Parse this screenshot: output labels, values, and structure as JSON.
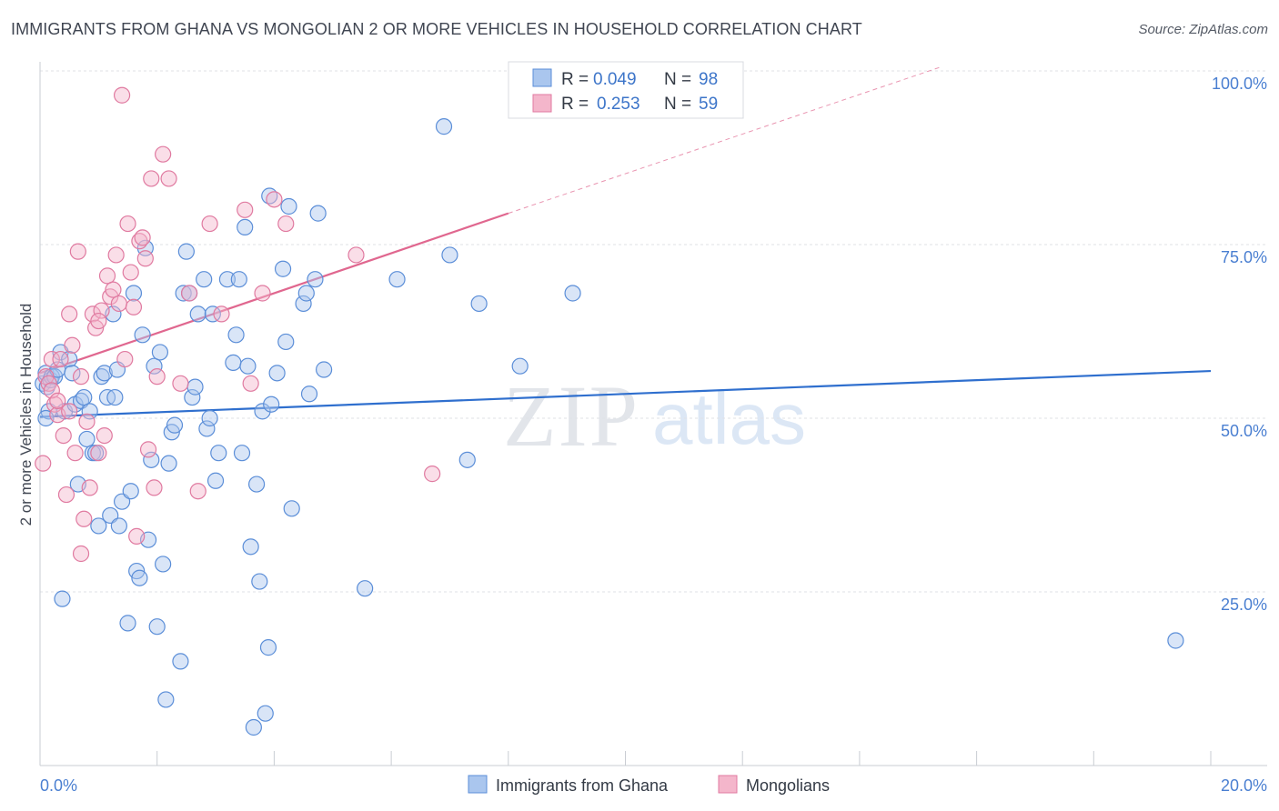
{
  "title": "IMMIGRANTS FROM GHANA VS MONGOLIAN 2 OR MORE VEHICLES IN HOUSEHOLD CORRELATION CHART",
  "source": "Source: ZipAtlas.com",
  "watermark": {
    "zip": "ZIP",
    "atlas": "atlas"
  },
  "legend": {
    "series1": {
      "r_label": "R =",
      "r_value": "0.049",
      "n_label": "N =",
      "n_value": "98"
    },
    "series2": {
      "r_label": "R =",
      "r_value": "0.253",
      "n_label": "N =",
      "n_value": "59"
    }
  },
  "colors": {
    "blue": "#5b8ed8",
    "blue_fill": "#aac6ee",
    "pink": "#e07aa0",
    "pink_fill": "#f4b6cb",
    "blue_line": "#2f6fce",
    "pink_line": "#e0678f"
  },
  "chart_data": {
    "type": "scatter",
    "title": "IMMIGRANTS FROM GHANA VS MONGOLIAN 2 OR MORE VEHICLES IN HOUSEHOLD CORRELATION CHART",
    "xlabel": "",
    "ylabel": "2 or more Vehicles in Household",
    "xlim": [
      0,
      20
    ],
    "ylim": [
      0,
      100
    ],
    "x_tick_labels": [
      "0.0%",
      "20.0%"
    ],
    "y_tick_labels": [
      "100.0%",
      "75.0%",
      "50.0%",
      "25.0%"
    ],
    "y_tick_values": [
      100,
      75,
      50,
      25
    ],
    "legend_labels": [
      "Immigrants from Ghana",
      "Mongolians"
    ],
    "series": [
      {
        "name": "Immigrants from Ghana",
        "R": 0.049,
        "N": 98,
        "trend": {
          "x": [
            0,
            20
          ],
          "y": [
            50.2,
            56.8
          ]
        },
        "points": [
          [
            0.05,
            55.0
          ],
          [
            0.1,
            56.5
          ],
          [
            0.12,
            54.5
          ],
          [
            0.15,
            51.0
          ],
          [
            0.18,
            55.5
          ],
          [
            0.2,
            56.0
          ],
          [
            0.25,
            56.0
          ],
          [
            0.3,
            57.0
          ],
          [
            0.35,
            59.5
          ],
          [
            0.38,
            24.0
          ],
          [
            0.42,
            51.0
          ],
          [
            0.5,
            58.5
          ],
          [
            0.55,
            56.5
          ],
          [
            0.6,
            52.0
          ],
          [
            0.65,
            40.5
          ],
          [
            0.7,
            52.5
          ],
          [
            0.75,
            53.0
          ],
          [
            0.8,
            47.0
          ],
          [
            0.85,
            51.0
          ],
          [
            0.9,
            45.0
          ],
          [
            0.95,
            45.0
          ],
          [
            1.0,
            34.5
          ],
          [
            1.05,
            56.0
          ],
          [
            1.1,
            56.5
          ],
          [
            1.15,
            53.0
          ],
          [
            1.2,
            36.0
          ],
          [
            1.25,
            65.0
          ],
          [
            1.28,
            53.0
          ],
          [
            1.32,
            57.0
          ],
          [
            1.35,
            34.5
          ],
          [
            1.4,
            38.0
          ],
          [
            1.5,
            20.5
          ],
          [
            1.55,
            39.5
          ],
          [
            1.6,
            68.0
          ],
          [
            1.65,
            28.0
          ],
          [
            1.7,
            27.0
          ],
          [
            1.75,
            62.0
          ],
          [
            1.8,
            74.5
          ],
          [
            1.85,
            32.5
          ],
          [
            1.9,
            44.0
          ],
          [
            1.95,
            57.5
          ],
          [
            2.0,
            20.0
          ],
          [
            2.05,
            59.5
          ],
          [
            2.1,
            29.0
          ],
          [
            2.15,
            9.5
          ],
          [
            2.2,
            43.5
          ],
          [
            2.25,
            48.0
          ],
          [
            2.3,
            49.0
          ],
          [
            2.4,
            15.0
          ],
          [
            2.45,
            68.0
          ],
          [
            2.5,
            74.0
          ],
          [
            2.55,
            68.0
          ],
          [
            2.6,
            53.0
          ],
          [
            2.65,
            54.5
          ],
          [
            2.7,
            65.0
          ],
          [
            2.8,
            70.0
          ],
          [
            2.85,
            48.5
          ],
          [
            2.9,
            50.0
          ],
          [
            2.95,
            65.0
          ],
          [
            3.0,
            41.0
          ],
          [
            3.05,
            45.0
          ],
          [
            3.2,
            70.0
          ],
          [
            3.3,
            58.0
          ],
          [
            3.35,
            62.0
          ],
          [
            3.4,
            70.0
          ],
          [
            3.45,
            45.0
          ],
          [
            3.5,
            77.5
          ],
          [
            3.55,
            57.5
          ],
          [
            3.6,
            31.5
          ],
          [
            3.65,
            5.5
          ],
          [
            3.7,
            40.5
          ],
          [
            3.75,
            26.5
          ],
          [
            3.8,
            51.0
          ],
          [
            3.85,
            7.5
          ],
          [
            3.9,
            17.0
          ],
          [
            3.92,
            82.0
          ],
          [
            3.95,
            52.0
          ],
          [
            4.05,
            56.5
          ],
          [
            4.15,
            71.5
          ],
          [
            4.2,
            61.0
          ],
          [
            4.25,
            80.5
          ],
          [
            4.3,
            37.0
          ],
          [
            4.5,
            66.5
          ],
          [
            4.55,
            68.0
          ],
          [
            4.6,
            53.5
          ],
          [
            4.7,
            70.0
          ],
          [
            4.75,
            79.5
          ],
          [
            4.85,
            57.0
          ],
          [
            5.55,
            25.5
          ],
          [
            6.1,
            70.0
          ],
          [
            6.9,
            92.0
          ],
          [
            7.0,
            73.5
          ],
          [
            7.3,
            44.0
          ],
          [
            7.5,
            66.5
          ],
          [
            8.2,
            57.5
          ],
          [
            9.1,
            68.0
          ],
          [
            19.4,
            18.0
          ],
          [
            0.1,
            50.0
          ]
        ]
      },
      {
        "name": "Mongolians",
        "R": 0.253,
        "N": 59,
        "trend_solid": {
          "x": [
            0,
            8.0
          ],
          "y": [
            56.5,
            79.5
          ]
        },
        "trend_dashed": {
          "x": [
            8.0,
            15.4
          ],
          "y": [
            79.5,
            100.6
          ]
        },
        "points": [
          [
            0.05,
            43.5
          ],
          [
            0.1,
            56.0
          ],
          [
            0.15,
            55.0
          ],
          [
            0.2,
            58.5
          ],
          [
            0.25,
            52.0
          ],
          [
            0.3,
            50.5
          ],
          [
            0.35,
            58.5
          ],
          [
            0.4,
            47.5
          ],
          [
            0.45,
            39.0
          ],
          [
            0.5,
            65.0
          ],
          [
            0.55,
            60.5
          ],
          [
            0.6,
            45.0
          ],
          [
            0.65,
            74.0
          ],
          [
            0.7,
            30.5
          ],
          [
            0.75,
            35.5
          ],
          [
            0.8,
            49.5
          ],
          [
            0.85,
            40.0
          ],
          [
            0.9,
            65.0
          ],
          [
            0.95,
            63.0
          ],
          [
            1.0,
            45.0
          ],
          [
            1.05,
            65.5
          ],
          [
            1.1,
            47.5
          ],
          [
            1.15,
            70.5
          ],
          [
            1.2,
            67.5
          ],
          [
            1.25,
            68.5
          ],
          [
            1.3,
            73.5
          ],
          [
            1.35,
            66.5
          ],
          [
            1.4,
            96.5
          ],
          [
            1.45,
            58.5
          ],
          [
            1.5,
            78.0
          ],
          [
            1.55,
            71.0
          ],
          [
            1.6,
            66.0
          ],
          [
            1.65,
            33.0
          ],
          [
            1.7,
            75.5
          ],
          [
            1.75,
            76.0
          ],
          [
            1.8,
            73.0
          ],
          [
            1.85,
            45.5
          ],
          [
            1.9,
            84.5
          ],
          [
            1.95,
            40.0
          ],
          [
            2.0,
            56.0
          ],
          [
            2.1,
            88.0
          ],
          [
            2.2,
            84.5
          ],
          [
            2.4,
            55.0
          ],
          [
            2.55,
            68.0
          ],
          [
            2.7,
            39.5
          ],
          [
            2.9,
            78.0
          ],
          [
            3.1,
            65.0
          ],
          [
            3.5,
            80.0
          ],
          [
            3.6,
            55.0
          ],
          [
            3.8,
            68.0
          ],
          [
            4.0,
            81.5
          ],
          [
            4.2,
            78.0
          ],
          [
            5.4,
            73.5
          ],
          [
            6.7,
            42.0
          ],
          [
            0.2,
            54.0
          ],
          [
            0.3,
            52.5
          ],
          [
            0.5,
            51.0
          ],
          [
            1.0,
            64.0
          ],
          [
            0.7,
            56.0
          ]
        ]
      }
    ]
  }
}
